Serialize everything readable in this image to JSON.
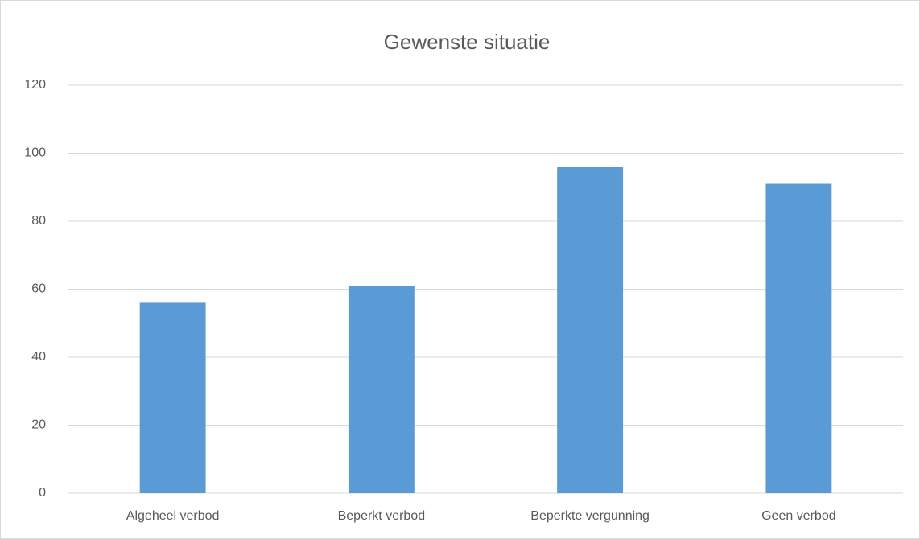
{
  "chart_data": {
    "type": "bar",
    "title": "Gewenste situatie",
    "categories": [
      "Algeheel verbod",
      "Beperkt verbod",
      "Beperkte vergunning",
      "Geen verbod"
    ],
    "values": [
      56,
      61,
      96,
      91
    ],
    "color": "#5b9bd5",
    "ylim": [
      0,
      120
    ],
    "yticks": [
      0,
      20,
      40,
      60,
      80,
      100,
      120
    ],
    "grid": true
  }
}
